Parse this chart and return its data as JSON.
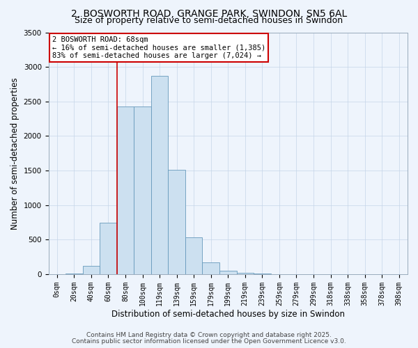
{
  "title_line1": "2, BOSWORTH ROAD, GRANGE PARK, SWINDON, SN5 6AL",
  "title_line2": "Size of property relative to semi-detached houses in Swindon",
  "xlabel": "Distribution of semi-detached houses by size in Swindon",
  "ylabel": "Number of semi-detached properties",
  "categories": [
    "0sqm",
    "20sqm",
    "40sqm",
    "60sqm",
    "80sqm",
    "100sqm",
    "119sqm",
    "139sqm",
    "159sqm",
    "179sqm",
    "199sqm",
    "219sqm",
    "239sqm",
    "259sqm",
    "279sqm",
    "299sqm",
    "318sqm",
    "338sqm",
    "358sqm",
    "378sqm",
    "398sqm"
  ],
  "values": [
    0,
    10,
    120,
    750,
    2430,
    2430,
    2870,
    1510,
    530,
    170,
    55,
    20,
    8,
    4,
    2,
    1,
    1,
    0,
    0,
    0,
    0
  ],
  "bar_color": "#cce0f0",
  "bar_edge_color": "#6699bb",
  "vline_x": 3.5,
  "vline_color": "#cc0000",
  "annotation_title": "2 BOSWORTH ROAD: 68sqm",
  "annotation_line2": "← 16% of semi-detached houses are smaller (1,385)",
  "annotation_line3": "83% of semi-detached houses are larger (7,024) →",
  "annotation_box_facecolor": "#ffffff",
  "annotation_box_edgecolor": "#cc0000",
  "ylim": [
    0,
    3500
  ],
  "yticks": [
    0,
    500,
    1000,
    1500,
    2000,
    2500,
    3000,
    3500
  ],
  "footer_line1": "Contains HM Land Registry data © Crown copyright and database right 2025.",
  "footer_line2": "Contains public sector information licensed under the Open Government Licence v3.0.",
  "background_color": "#eef4fc",
  "plot_bg_color": "#eef4fc",
  "title_fontsize": 10,
  "subtitle_fontsize": 9,
  "tick_fontsize": 7,
  "label_fontsize": 8.5,
  "footer_fontsize": 6.5,
  "annotation_fontsize": 7.5
}
